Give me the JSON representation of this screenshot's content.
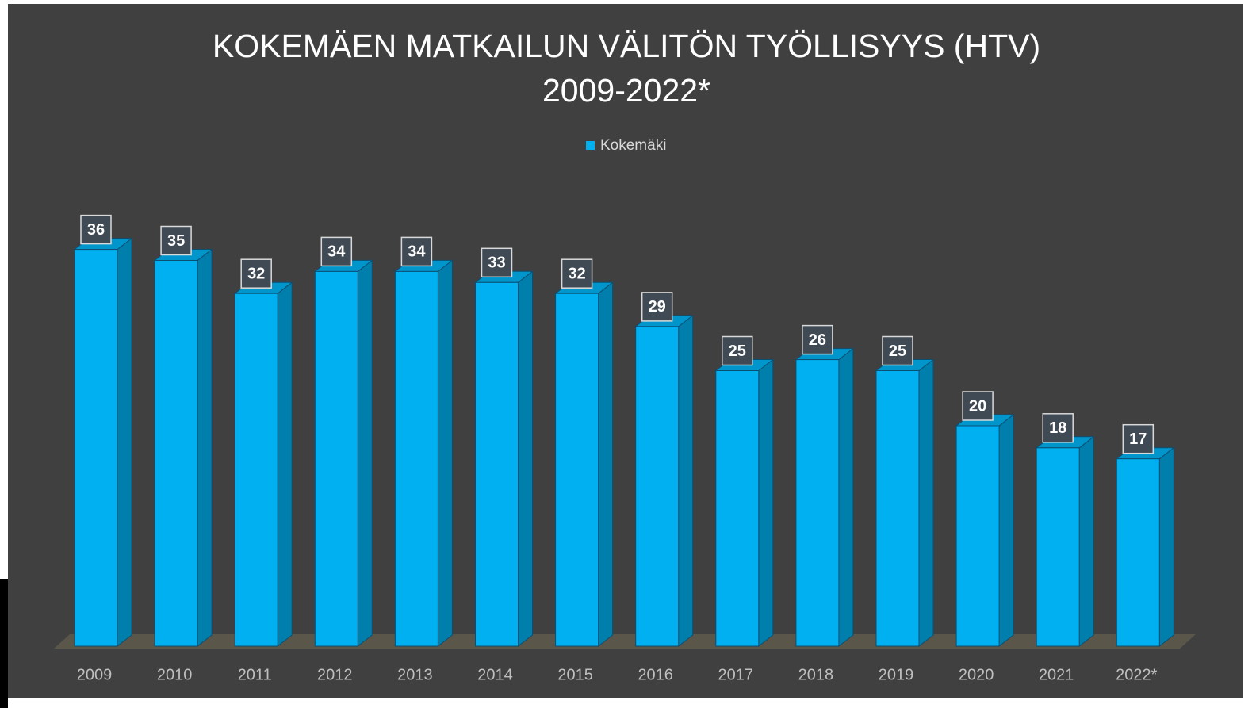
{
  "chart_data": {
    "type": "bar",
    "title": "KOKEMÄEN MATKAILUN VÄLITÖN TYÖLLISYYS (HTV) 2009-2022*",
    "categories": [
      "2009",
      "2010",
      "2011",
      "2012",
      "2013",
      "2014",
      "2015",
      "2016",
      "2017",
      "2018",
      "2019",
      "2020",
      "2021",
      "2022*"
    ],
    "series": [
      {
        "name": "Kokemäki",
        "color": "#00b0f0",
        "values": [
          36,
          35,
          32,
          34,
          34,
          33,
          32,
          29,
          25,
          26,
          25,
          20,
          18,
          17
        ]
      }
    ]
  }
}
